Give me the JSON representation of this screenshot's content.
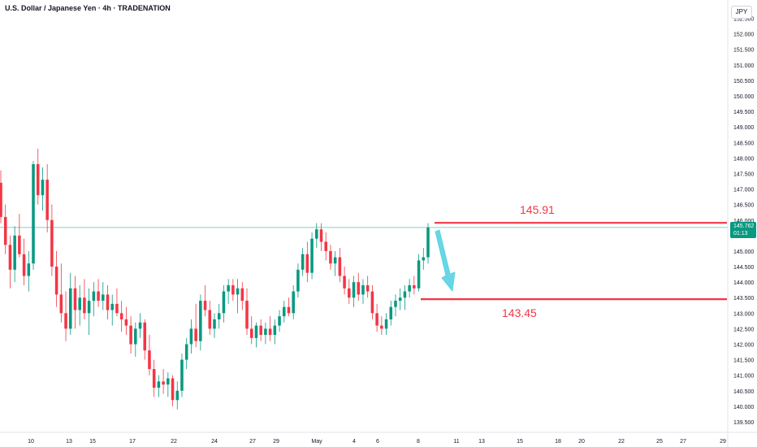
{
  "header": {
    "title": "U.S. Dollar / Japanese Yen · 4h · TRADENATION",
    "currency": "JPY"
  },
  "price_tag": {
    "price": "145.762",
    "countdown": "01:13"
  },
  "colors": {
    "up": "#089981",
    "down": "#f23645",
    "level_line": "#f23645",
    "arrow": "#4dd0e1",
    "current_price_line": "#7fd1c5"
  },
  "chart_data": {
    "type": "candlestick",
    "title": "U.S. Dollar / Japanese Yen · 4h · TRADENATION",
    "ylim": [
      139.25,
      152.85
    ],
    "y_ticks": [
      "139.500",
      "140.000",
      "140.500",
      "141.000",
      "141.500",
      "142.000",
      "142.500",
      "143.000",
      "143.500",
      "144.000",
      "144.500",
      "145.000",
      "145.500",
      "146.000",
      "146.500",
      "147.000",
      "147.500",
      "148.000",
      "148.500",
      "149.000",
      "149.500",
      "150.000",
      "150.500",
      "151.000",
      "151.500",
      "152.000",
      "152.500"
    ],
    "x_ticks": [
      "10",
      "13",
      "15",
      "17",
      "22",
      "24",
      "27",
      "29",
      "May",
      "4",
      "6",
      "8",
      "11",
      "13",
      "15",
      "18",
      "20",
      "22",
      "25",
      "27",
      "29"
    ],
    "current_price": 145.762,
    "levels": [
      {
        "label": "145.91",
        "value": 145.91
      },
      {
        "label": "143.45",
        "value": 143.45
      }
    ],
    "candles": [
      [
        147.2,
        147.6,
        145.9,
        146.1
      ],
      [
        146.1,
        146.5,
        144.9,
        145.2
      ],
      [
        145.2,
        145.5,
        143.8,
        144.4
      ],
      [
        144.4,
        145.8,
        144.0,
        145.5
      ],
      [
        145.5,
        146.2,
        144.8,
        144.9
      ],
      [
        144.9,
        145.4,
        143.9,
        144.2
      ],
      [
        144.2,
        145.0,
        143.7,
        144.6
      ],
      [
        144.6,
        147.9,
        144.4,
        147.8
      ],
      [
        147.8,
        148.3,
        146.5,
        146.8
      ],
      [
        146.8,
        147.7,
        146.3,
        147.3
      ],
      [
        147.3,
        147.8,
        145.6,
        146.0
      ],
      [
        146.0,
        146.5,
        144.2,
        144.5
      ],
      [
        144.5,
        145.0,
        143.2,
        143.6
      ],
      [
        143.6,
        144.6,
        142.7,
        143.0
      ],
      [
        143.0,
        143.7,
        142.1,
        142.5
      ],
      [
        142.5,
        144.3,
        142.3,
        143.8
      ],
      [
        143.8,
        144.2,
        142.5,
        143.1
      ],
      [
        143.1,
        143.9,
        142.6,
        143.5
      ],
      [
        143.5,
        144.1,
        142.8,
        143.0
      ],
      [
        143.0,
        143.8,
        142.3,
        143.4
      ],
      [
        143.4,
        144.0,
        142.9,
        143.7
      ],
      [
        143.7,
        144.1,
        143.2,
        143.4
      ],
      [
        143.4,
        144.0,
        143.1,
        143.6
      ],
      [
        143.6,
        143.9,
        142.8,
        143.1
      ],
      [
        143.1,
        143.6,
        142.6,
        143.3
      ],
      [
        143.3,
        143.8,
        142.9,
        143.0
      ],
      [
        143.0,
        143.4,
        142.4,
        142.8
      ],
      [
        142.8,
        143.2,
        142.3,
        142.6
      ],
      [
        142.6,
        142.9,
        141.7,
        142.0
      ],
      [
        142.0,
        142.7,
        141.6,
        142.5
      ],
      [
        142.5,
        143.0,
        142.2,
        142.7
      ],
      [
        142.7,
        142.8,
        141.5,
        141.8
      ],
      [
        141.8,
        142.3,
        141.0,
        141.2
      ],
      [
        141.2,
        141.5,
        140.3,
        140.6
      ],
      [
        140.6,
        141.0,
        140.3,
        140.8
      ],
      [
        140.8,
        141.2,
        140.4,
        140.7
      ],
      [
        140.7,
        141.1,
        140.3,
        140.9
      ],
      [
        140.9,
        141.0,
        140.0,
        140.2
      ],
      [
        140.2,
        140.8,
        139.9,
        140.5
      ],
      [
        140.5,
        141.7,
        140.3,
        141.5
      ],
      [
        141.5,
        142.2,
        141.2,
        142.0
      ],
      [
        142.0,
        142.8,
        141.7,
        142.5
      ],
      [
        142.5,
        143.3,
        141.9,
        142.1
      ],
      [
        142.1,
        143.6,
        141.8,
        143.4
      ],
      [
        143.4,
        143.9,
        142.9,
        143.1
      ],
      [
        143.1,
        143.4,
        142.3,
        142.5
      ],
      [
        142.5,
        143.0,
        142.2,
        142.8
      ],
      [
        142.8,
        143.3,
        142.5,
        143.0
      ],
      [
        143.0,
        143.9,
        142.7,
        143.7
      ],
      [
        143.7,
        144.1,
        143.3,
        143.9
      ],
      [
        143.9,
        144.1,
        143.4,
        143.6
      ],
      [
        143.6,
        144.1,
        143.0,
        143.8
      ],
      [
        143.8,
        144.0,
        143.1,
        143.4
      ],
      [
        143.4,
        143.8,
        142.3,
        142.5
      ],
      [
        142.5,
        142.9,
        142.0,
        142.2
      ],
      [
        142.2,
        142.7,
        141.9,
        142.6
      ],
      [
        142.6,
        142.8,
        142.1,
        142.3
      ],
      [
        142.3,
        142.7,
        142.0,
        142.5
      ],
      [
        142.5,
        142.9,
        142.1,
        142.3
      ],
      [
        142.3,
        142.8,
        142.0,
        142.6
      ],
      [
        142.6,
        143.1,
        142.4,
        142.9
      ],
      [
        142.9,
        143.4,
        142.7,
        143.2
      ],
      [
        143.2,
        143.5,
        142.9,
        143.0
      ],
      [
        143.0,
        143.9,
        142.8,
        143.7
      ],
      [
        143.7,
        144.6,
        143.5,
        144.4
      ],
      [
        144.4,
        145.1,
        144.2,
        144.9
      ],
      [
        144.9,
        145.3,
        144.0,
        144.3
      ],
      [
        144.3,
        145.6,
        144.1,
        145.4
      ],
      [
        145.4,
        145.9,
        145.1,
        145.7
      ],
      [
        145.7,
        145.9,
        145.0,
        145.3
      ],
      [
        145.3,
        145.6,
        144.7,
        145.0
      ],
      [
        145.0,
        145.2,
        144.4,
        144.6
      ],
      [
        144.6,
        145.0,
        144.2,
        144.8
      ],
      [
        144.8,
        145.1,
        144.0,
        144.2
      ],
      [
        144.2,
        144.5,
        143.6,
        143.8
      ],
      [
        143.8,
        144.1,
        143.3,
        143.5
      ],
      [
        143.5,
        144.2,
        143.2,
        144.0
      ],
      [
        144.0,
        144.3,
        143.4,
        143.6
      ],
      [
        143.6,
        144.1,
        143.3,
        143.9
      ],
      [
        143.9,
        144.2,
        143.5,
        143.7
      ],
      [
        143.7,
        143.9,
        142.8,
        143.0
      ],
      [
        143.0,
        143.3,
        142.4,
        142.6
      ],
      [
        142.6,
        142.9,
        142.3,
        142.5
      ],
      [
        142.5,
        143.0,
        142.3,
        142.8
      ],
      [
        142.8,
        143.4,
        142.6,
        143.2
      ],
      [
        143.2,
        143.6,
        142.9,
        143.4
      ],
      [
        143.4,
        143.8,
        143.1,
        143.5
      ],
      [
        143.5,
        143.9,
        143.1,
        143.7
      ],
      [
        143.7,
        144.1,
        143.5,
        143.9
      ],
      [
        143.9,
        144.2,
        143.6,
        143.8
      ],
      [
        143.8,
        144.9,
        143.7,
        144.7
      ],
      [
        144.7,
        145.1,
        144.4,
        144.8
      ],
      [
        144.8,
        145.9,
        144.6,
        145.76
      ]
    ]
  }
}
